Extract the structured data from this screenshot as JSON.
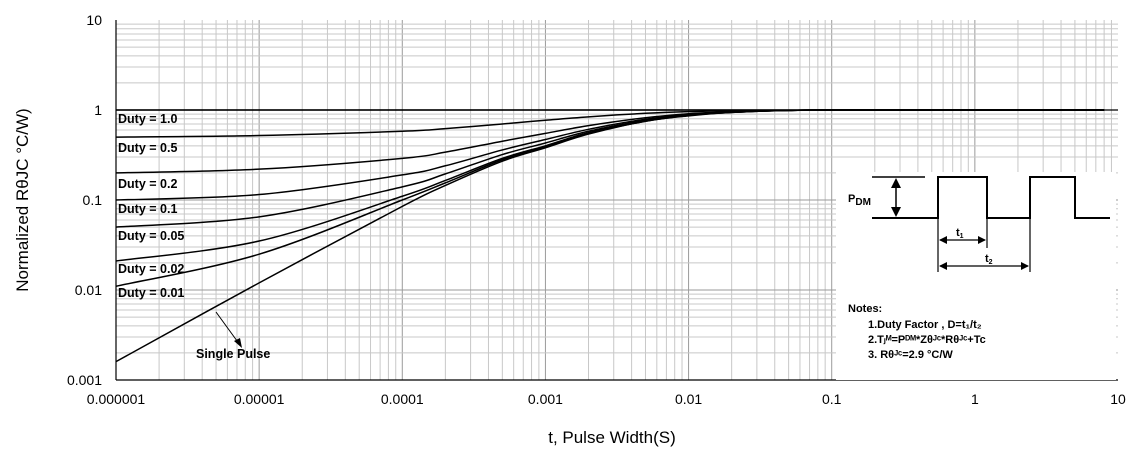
{
  "chart_data": {
    "type": "line",
    "xlabel": "t, Pulse Width(S)",
    "ylabel": "Normalized RθJC °C/W)",
    "xscale": "log",
    "yscale": "log",
    "xlim": [
      1e-06,
      10
    ],
    "ylim": [
      0.001,
      10
    ],
    "grid": true,
    "x_ticks": [
      "0.000001",
      "0.00001",
      "0.0001",
      "0.001",
      "0.01",
      "0.1",
      "1",
      "10"
    ],
    "y_ticks": [
      "0.001",
      "0.01",
      "0.1",
      "1",
      "10"
    ],
    "x": [
      1e-06,
      1e-05,
      0.0001,
      0.0002,
      0.0005,
      0.001,
      0.002,
      0.005,
      0.01,
      0.02,
      0.05,
      0.1,
      1,
      8
    ],
    "series": [
      {
        "name": "Duty = 1.0",
        "values": [
          1,
          1,
          1,
          1,
          1,
          1,
          1,
          1,
          1,
          1,
          1,
          1,
          1,
          1
        ]
      },
      {
        "name": "Duty = 0.5",
        "values": [
          0.5,
          0.52,
          0.58,
          0.62,
          0.7,
          0.77,
          0.84,
          0.92,
          0.96,
          0.98,
          0.99,
          1,
          1,
          1
        ]
      },
      {
        "name": "Duty = 0.2",
        "values": [
          0.2,
          0.22,
          0.29,
          0.34,
          0.45,
          0.55,
          0.67,
          0.82,
          0.91,
          0.96,
          0.99,
          1,
          1,
          1
        ]
      },
      {
        "name": "Duty = 0.1",
        "values": [
          0.1,
          0.115,
          0.19,
          0.24,
          0.36,
          0.47,
          0.61,
          0.79,
          0.89,
          0.95,
          0.99,
          1,
          1,
          1
        ]
      },
      {
        "name": "Duty = 0.05",
        "values": [
          0.05,
          0.065,
          0.14,
          0.195,
          0.32,
          0.43,
          0.58,
          0.77,
          0.88,
          0.95,
          0.99,
          1,
          1,
          1
        ]
      },
      {
        "name": "Duty = 0.02",
        "values": [
          0.021,
          0.035,
          0.11,
          0.165,
          0.29,
          0.4,
          0.56,
          0.76,
          0.87,
          0.94,
          0.99,
          1,
          1,
          1
        ]
      },
      {
        "name": "Duty = 0.01",
        "values": [
          0.011,
          0.025,
          0.1,
          0.155,
          0.28,
          0.39,
          0.55,
          0.75,
          0.87,
          0.94,
          0.99,
          1,
          1,
          1
        ]
      },
      {
        "name": "Single Pulse",
        "values": [
          0.0016,
          0.012,
          0.085,
          0.145,
          0.27,
          0.38,
          0.54,
          0.75,
          0.86,
          0.94,
          0.99,
          1,
          1,
          1
        ]
      }
    ],
    "inset": {
      "pdm_label": "P",
      "pdm_sub": "DM",
      "t1_label": "t",
      "t1_sub": "1",
      "t2_label": "t",
      "t2_sub": "2"
    },
    "notes": {
      "title": "Notes:",
      "line1": "1.Duty Factor , D=t₁/t₂",
      "line2": "2.Tⱼᴹ=Pᴰᴹ*Zθᴶᶜ*Rθᴶᶜ+Tc",
      "line3": "3. Rθᴶᶜ=2.9 °C/W"
    }
  }
}
